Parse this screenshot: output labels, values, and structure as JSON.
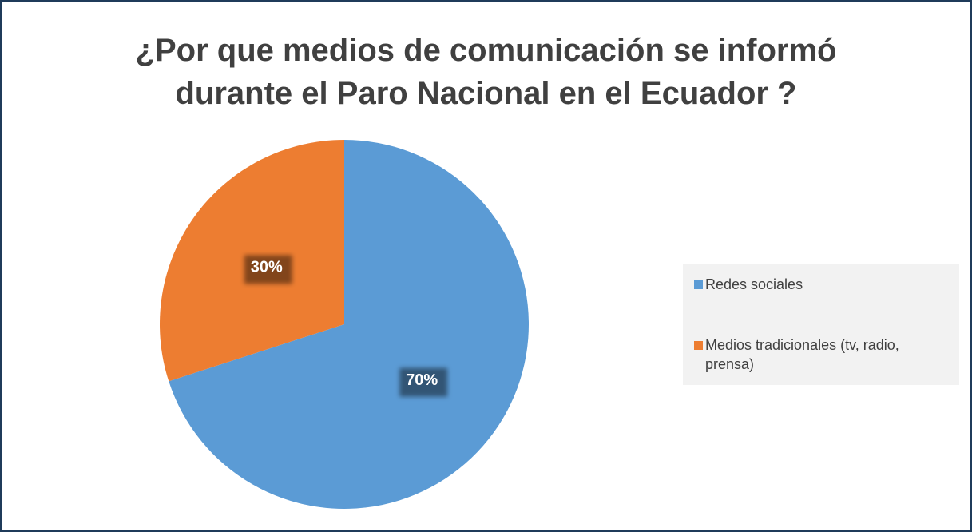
{
  "chart_data": {
    "type": "pie",
    "title": "¿Por que medios de comunicación se informó durante el Paro Nacional en el Ecuador ?",
    "categories": [
      "Redes sociales",
      "Medios tradicionales (tv, radio, prensa)"
    ],
    "values": [
      70,
      30
    ],
    "value_labels": [
      "70%",
      "30%"
    ],
    "colors": [
      "#5b9bd5",
      "#ed7d31"
    ],
    "legend": "right"
  }
}
